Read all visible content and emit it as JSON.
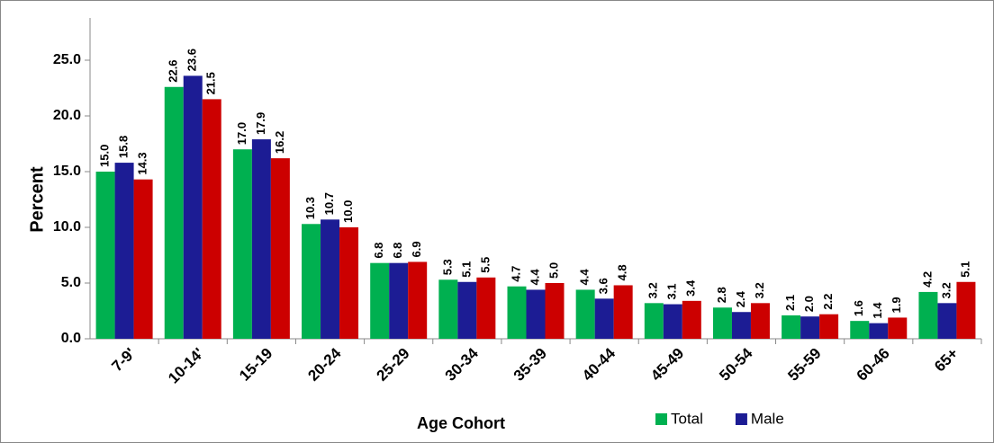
{
  "chart_data": {
    "type": "bar",
    "x_label": "Age Cohort",
    "y_label": "Percent",
    "categories": [
      "7-9'",
      "10-14'",
      "15-19",
      "20-24",
      "25-29",
      "30-34",
      "35-39",
      "40-44",
      "45-49",
      "50-54",
      "55-59",
      "60-46",
      "65+"
    ],
    "series": [
      {
        "name": "Total",
        "color": "#00b050",
        "values": [
          15.0,
          22.6,
          17.0,
          10.3,
          6.8,
          5.3,
          4.7,
          4.4,
          3.2,
          2.8,
          2.1,
          1.6,
          4.2
        ],
        "value_labels": [
          "15.0",
          "22.6",
          "17.0",
          "10.3",
          "6.8",
          "5.3",
          "4.7",
          "4.4",
          "3.2",
          "2.8",
          "2.1",
          "1.6",
          "4.2"
        ]
      },
      {
        "name": "Male",
        "color": "#1c1c94",
        "values": [
          15.8,
          23.6,
          17.9,
          10.7,
          6.8,
          5.1,
          4.4,
          3.6,
          3.1,
          2.4,
          2.0,
          1.4,
          3.2
        ],
        "value_labels": [
          "15.8",
          "23.6",
          "17.9",
          "10.7",
          "6.8",
          "5.1",
          "4.4",
          "3.6",
          "3.1",
          "2.4",
          "2.0",
          "1.4",
          "3.2"
        ]
      },
      {
        "color": "#cc0000",
        "values": [
          14.3,
          21.5,
          16.2,
          10.0,
          6.9,
          5.5,
          5.0,
          4.8,
          3.4,
          3.2,
          2.2,
          1.9,
          5.1
        ],
        "value_labels": [
          "14.3",
          "21.5",
          "16.2",
          "10.0",
          "6.9",
          "5.5",
          "5.0",
          "4.8",
          "3.4",
          "3.2",
          "2.2",
          "1.9",
          "5.1"
        ]
      }
    ],
    "ylim": [
      0,
      25
    ],
    "yticks": [
      {
        "value": 0,
        "label": "0.0"
      },
      {
        "value": 5,
        "label": "5.0"
      },
      {
        "value": 10,
        "label": "10.0"
      },
      {
        "value": 15,
        "label": "15.0"
      },
      {
        "value": 20,
        "label": "20.0"
      },
      {
        "value": 25,
        "label": "25.0"
      }
    ],
    "grid": false,
    "legend": "bottom-right"
  }
}
